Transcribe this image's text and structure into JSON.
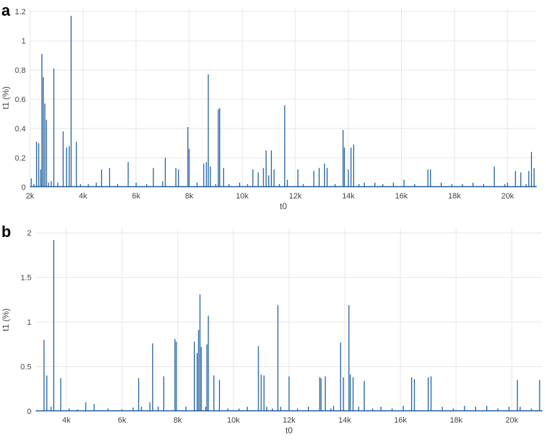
{
  "panels": [
    {
      "label": "a",
      "chart_data": {
        "type": "line",
        "xlabel": "t0",
        "ylabel": "t1 (%)",
        "xlim": [
          2000,
          21100
        ],
        "ylim": [
          0,
          1.22
        ],
        "grid": true,
        "xticks": [
          2000,
          4000,
          6000,
          8000,
          10000,
          12000,
          14000,
          16000,
          18000,
          20000
        ],
        "xtick_labels": [
          "2k",
          "4k",
          "6k",
          "8k",
          "10k",
          "12k",
          "14k",
          "16k",
          "18k",
          "20k"
        ],
        "yticks": [
          0,
          0.2,
          0.4,
          0.6,
          0.8,
          1,
          1.2
        ],
        "ytick_labels": [
          "0",
          "0.2",
          "0.4",
          "0.6",
          "0.8",
          "1",
          "1.2"
        ],
        "series": [
          {
            "color": "#1f5fa0",
            "x": [
              2050,
              2150,
              2250,
              2330,
              2400,
              2450,
              2500,
              2560,
              2620,
              2700,
              2800,
              2900,
              3050,
              3250,
              3380,
              3480,
              3550,
              3750,
              3900,
              4200,
              4500,
              4700,
              5000,
              5300,
              5700,
              6000,
              6400,
              6650,
              7000,
              7100,
              7500,
              7600,
              7950,
              8000,
              8300,
              8550,
              8650,
              8720,
              8800,
              9000,
              9100,
              9150,
              9300,
              9500,
              9900,
              10200,
              10400,
              10600,
              10800,
              10900,
              11000,
              11100,
              11200,
              11400,
              11600,
              11700,
              12100,
              12300,
              12700,
              12900,
              13100,
              13200,
              13500,
              13800,
              13850,
              14000,
              14100,
              14200,
              14400,
              14600,
              15000,
              15300,
              15700,
              16100,
              16500,
              17000,
              17100,
              17500,
              17900,
              18300,
              18700,
              19100,
              19500,
              19900,
              20000,
              20300,
              20500,
              20700,
              20800,
              20900,
              21000
            ],
            "y": [
              0.06,
              0.02,
              0.31,
              0.3,
              0.12,
              0.91,
              0.75,
              0.57,
              0.46,
              0.03,
              0.04,
              0.81,
              0.03,
              0.38,
              0.27,
              0.28,
              1.17,
              0.31,
              0.02,
              0.02,
              0.03,
              0.12,
              0.13,
              0.02,
              0.17,
              0.03,
              0.02,
              0.13,
              0.04,
              0.2,
              0.13,
              0.12,
              0.41,
              0.26,
              0.03,
              0.16,
              0.17,
              0.77,
              0.14,
              0.02,
              0.53,
              0.54,
              0.13,
              0.02,
              0.03,
              0.02,
              0.12,
              0.1,
              0.13,
              0.25,
              0.08,
              0.25,
              0.12,
              0.02,
              0.56,
              0.05,
              0.12,
              0.02,
              0.11,
              0.13,
              0.16,
              0.13,
              0.02,
              0.39,
              0.27,
              0.12,
              0.27,
              0.29,
              0.02,
              0.03,
              0.03,
              0.02,
              0.03,
              0.05,
              0.02,
              0.12,
              0.12,
              0.03,
              0.02,
              0.02,
              0.03,
              0.02,
              0.14,
              0.02,
              0.03,
              0.11,
              0.1,
              0.02,
              0.11,
              0.24,
              0.13
            ]
          }
        ]
      }
    },
    {
      "label": "b",
      "chart_data": {
        "type": "line",
        "xlabel": "t0",
        "ylabel": "t1 (%)",
        "xlim": [
          2900,
          21100
        ],
        "ylim": [
          0,
          2.05
        ],
        "grid": true,
        "xticks": [
          4000,
          6000,
          8000,
          10000,
          12000,
          14000,
          16000,
          18000,
          20000
        ],
        "xtick_labels": [
          "4k",
          "6k",
          "8k",
          "10k",
          "12k",
          "14k",
          "16k",
          "18k",
          "20k"
        ],
        "yticks": [
          0,
          0.5,
          1,
          1.5,
          2
        ],
        "ytick_labels": [
          "0",
          "0.5",
          "1",
          "1.5",
          "2"
        ],
        "series": [
          {
            "color": "#1f5fa0",
            "x": [
              3200,
              3300,
              3450,
              3550,
              3800,
              4100,
              4400,
              4700,
              5000,
              5500,
              6000,
              6400,
              6600,
              6700,
              7000,
              7100,
              7300,
              7500,
              7900,
              7950,
              8300,
              8600,
              8700,
              8750,
              8800,
              8850,
              9000,
              9050,
              9100,
              9300,
              9500,
              9800,
              10200,
              10500,
              10900,
              11000,
              11100,
              11200,
              11400,
              11600,
              11700,
              12000,
              12300,
              12700,
              13100,
              13150,
              13300,
              13500,
              13600,
              13850,
              13950,
              14150,
              14200,
              14300,
              14500,
              14700,
              15000,
              15300,
              15700,
              16100,
              16400,
              16500,
              17000,
              17100,
              17500,
              17900,
              18300,
              18700,
              19100,
              19500,
              19900,
              20200,
              20300,
              20700,
              21000
            ],
            "y": [
              0.8,
              0.4,
              0.05,
              1.92,
              0.37,
              0.03,
              0.02,
              0.1,
              0.08,
              0.03,
              0.02,
              0.04,
              0.37,
              0.05,
              0.1,
              0.76,
              0.05,
              0.39,
              0.81,
              0.78,
              0.05,
              0.78,
              0.65,
              0.91,
              1.31,
              0.72,
              0.05,
              0.75,
              1.07,
              0.4,
              0.35,
              0.03,
              0.03,
              0.05,
              0.73,
              0.41,
              0.4,
              0.05,
              0.03,
              1.19,
              0.05,
              0.39,
              0.03,
              0.05,
              0.38,
              0.37,
              0.39,
              0.03,
              0.06,
              0.77,
              0.38,
              1.19,
              0.41,
              0.38,
              0.05,
              0.34,
              0.03,
              0.05,
              0.03,
              0.06,
              0.38,
              0.36,
              0.38,
              0.39,
              0.05,
              0.03,
              0.06,
              0.05,
              0.06,
              0.03,
              0.05,
              0.35,
              0.05,
              0.03,
              0.35
            ]
          }
        ]
      }
    }
  ]
}
